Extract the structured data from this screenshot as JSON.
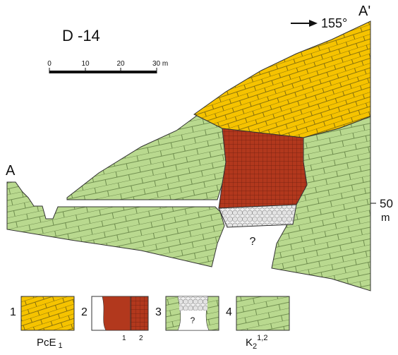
{
  "title": "D -14",
  "direction": "155°",
  "section_ends": {
    "start": "A",
    "end": "A'"
  },
  "scale": {
    "ticks": [
      "0",
      "10",
      "20",
      "30 m"
    ]
  },
  "elevation": {
    "value": "50",
    "unit": "m"
  },
  "unknown_label": "?",
  "legend": [
    {
      "number": "1",
      "label_main": "PcE",
      "label_sub": "1"
    },
    {
      "number": "2",
      "sub_labels": [
        "1",
        "2"
      ]
    },
    {
      "number": "3",
      "mark": "?"
    },
    {
      "number": "4",
      "label_main": "K",
      "label_sub": "2",
      "label_sup": "1,2"
    }
  ]
}
